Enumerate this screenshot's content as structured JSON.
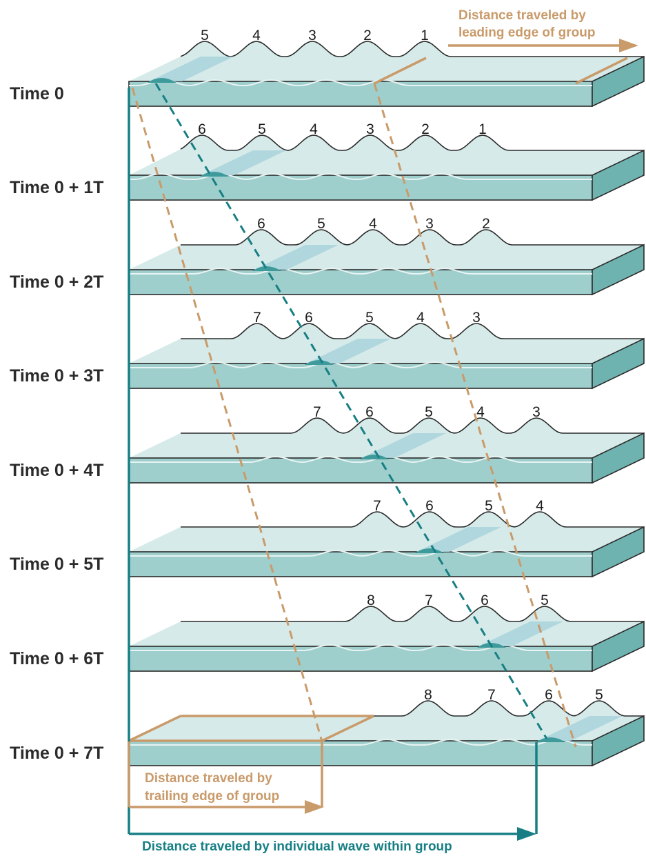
{
  "captions": {
    "leading_line1": "Distance traveled by",
    "leading_line2": "leading edge of group",
    "trailing_line1": "Distance traveled by",
    "trailing_line2": "trailing edge of group",
    "individual": "Distance traveled by individual wave within group"
  },
  "panels": [
    {
      "label": "Time 0",
      "waves": [
        "5",
        "4",
        "3",
        "2",
        "1"
      ]
    },
    {
      "label": "Time 0 + 1T",
      "waves": [
        "6",
        "5",
        "4",
        "3",
        "2",
        "1"
      ]
    },
    {
      "label": "Time 0 + 2T",
      "waves": [
        "6",
        "5",
        "4",
        "3",
        "2"
      ]
    },
    {
      "label": "Time 0 + 3T",
      "waves": [
        "7",
        "6",
        "5",
        "4",
        "3"
      ]
    },
    {
      "label": "Time 0 + 4T",
      "waves": [
        "7",
        "6",
        "5",
        "4",
        "3"
      ]
    },
    {
      "label": "Time 0 + 5T",
      "waves": [
        "7",
        "6",
        "5",
        "4"
      ]
    },
    {
      "label": "Time 0 + 6T",
      "waves": [
        "8",
        "7",
        "6",
        "5"
      ]
    },
    {
      "label": "Time 0 + 7T",
      "waves": [
        "8",
        "7",
        "6",
        "5"
      ]
    }
  ],
  "colors": {
    "water_front": "#9fcfcc",
    "water_top": "#d6ebe9",
    "water_side": "#6fb3b0",
    "highlight": "#a9d3dc",
    "outline": "#2a2a2a",
    "brown": "#c99a6a",
    "teal": "#177f84"
  }
}
